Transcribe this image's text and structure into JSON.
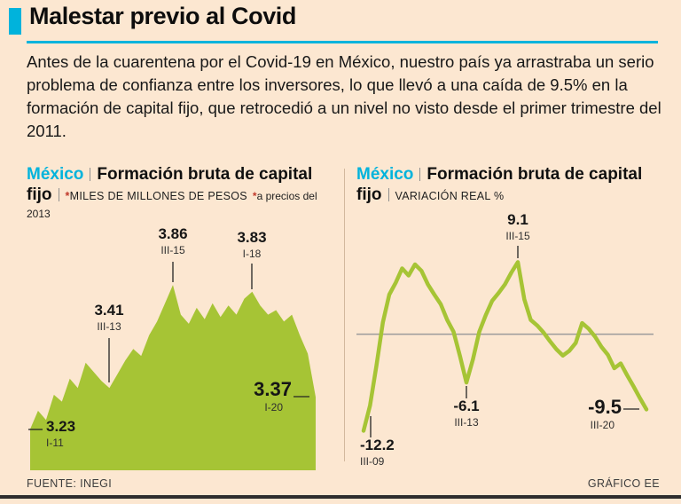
{
  "header": {
    "title": "Malestar previo al Covid"
  },
  "intro": "Antes de la cuarentena por el Covid-19 en México, nuestro país ya arrastraba un serio problema de confianza entre los inversores, lo que llevó a una caída de 9.5% en la formación de capital fijo, que retrocedió a un nivel no visto desde el primer trimestre del 2011.",
  "footer": {
    "source": "FUENTE: INEGI",
    "credit": "GRÁFICO EE"
  },
  "colors": {
    "background": "#fce7d1",
    "accent_cyan": "#00b3dc",
    "chart_green": "#a6c435",
    "text_dark": "#141414",
    "footnote_red": "#c0392b",
    "zero_line_gray": "#9b9b9b",
    "divider_tan": "#d2b89d"
  },
  "chart_data": [
    {
      "type": "area",
      "region": "México",
      "title": "Formación bruta de capital fijo",
      "unit_mark": "*",
      "unit_label": "MILES DE MILLONES DE PESOS",
      "footnote_mark": "*",
      "footnote": "a precios del 2013",
      "ylim": [
        3.05,
        4.0
      ],
      "grid": false,
      "values": [
        3.23,
        3.31,
        3.27,
        3.38,
        3.35,
        3.45,
        3.41,
        3.52,
        3.48,
        3.44,
        3.41,
        3.47,
        3.53,
        3.58,
        3.55,
        3.64,
        3.7,
        3.78,
        3.86,
        3.73,
        3.69,
        3.76,
        3.71,
        3.78,
        3.72,
        3.77,
        3.73,
        3.8,
        3.83,
        3.77,
        3.73,
        3.75,
        3.7,
        3.73,
        3.64,
        3.56,
        3.37
      ],
      "annotations": [
        {
          "value": "3.23",
          "period": "I-11"
        },
        {
          "value": "3.41",
          "period": "III-13"
        },
        {
          "value": "3.86",
          "period": "III-15"
        },
        {
          "value": "3.83",
          "period": "I-18"
        },
        {
          "value": "3.37",
          "period": "I-20",
          "emphasis": true
        }
      ]
    },
    {
      "type": "line",
      "region": "México",
      "title": "Formación bruta de capital fijo",
      "unit_label": "VARIACIÓN REAL %",
      "ylim": [
        -15.5,
        12.5
      ],
      "zero_line": true,
      "grid": false,
      "values": [
        -12.2,
        -9.0,
        -4.0,
        1.5,
        5.0,
        6.5,
        8.3,
        7.4,
        8.8,
        8.0,
        6.3,
        5.0,
        3.8,
        1.8,
        0.3,
        -2.8,
        -6.1,
        -3.2,
        0.3,
        2.4,
        4.2,
        5.2,
        6.3,
        7.8,
        9.1,
        4.4,
        1.8,
        1.1,
        0.2,
        -0.9,
        -1.9,
        -2.7,
        -2.1,
        -1.1,
        1.4,
        0.7,
        -0.3,
        -1.6,
        -2.6,
        -4.3,
        -3.7,
        -5.2,
        -6.6,
        -8.1,
        -9.5
      ],
      "annotations": [
        {
          "value": "-12.2",
          "period": "III-09"
        },
        {
          "value": "-6.1",
          "period": "III-13"
        },
        {
          "value": "9.1",
          "period": "III-15"
        },
        {
          "value": "-9.5",
          "period": "III-20",
          "emphasis": true
        }
      ]
    }
  ]
}
